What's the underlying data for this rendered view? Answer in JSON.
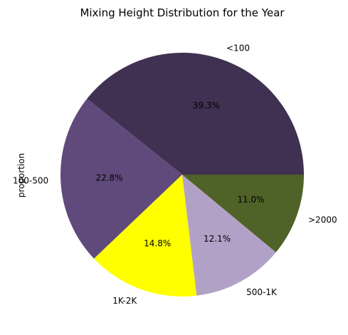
{
  "chart_data": {
    "type": "pie",
    "title": "Mixing Height Distribution for the Year",
    "ylabel": "proportion",
    "categories": [
      "<100",
      "100-500",
      "1K-2K",
      "500-1K",
      ">2000"
    ],
    "values": [
      39.3,
      22.8,
      14.8,
      12.1,
      11.0
    ],
    "value_labels": [
      "39.3%",
      "22.8%",
      "14.8%",
      "12.1%",
      "11.0%"
    ],
    "colors": [
      "#403152",
      "#604a7b",
      "#ffff00",
      "#b2a1c7",
      "#4f6228"
    ],
    "start_angle_deg": 0,
    "direction": "counterclockwise"
  }
}
